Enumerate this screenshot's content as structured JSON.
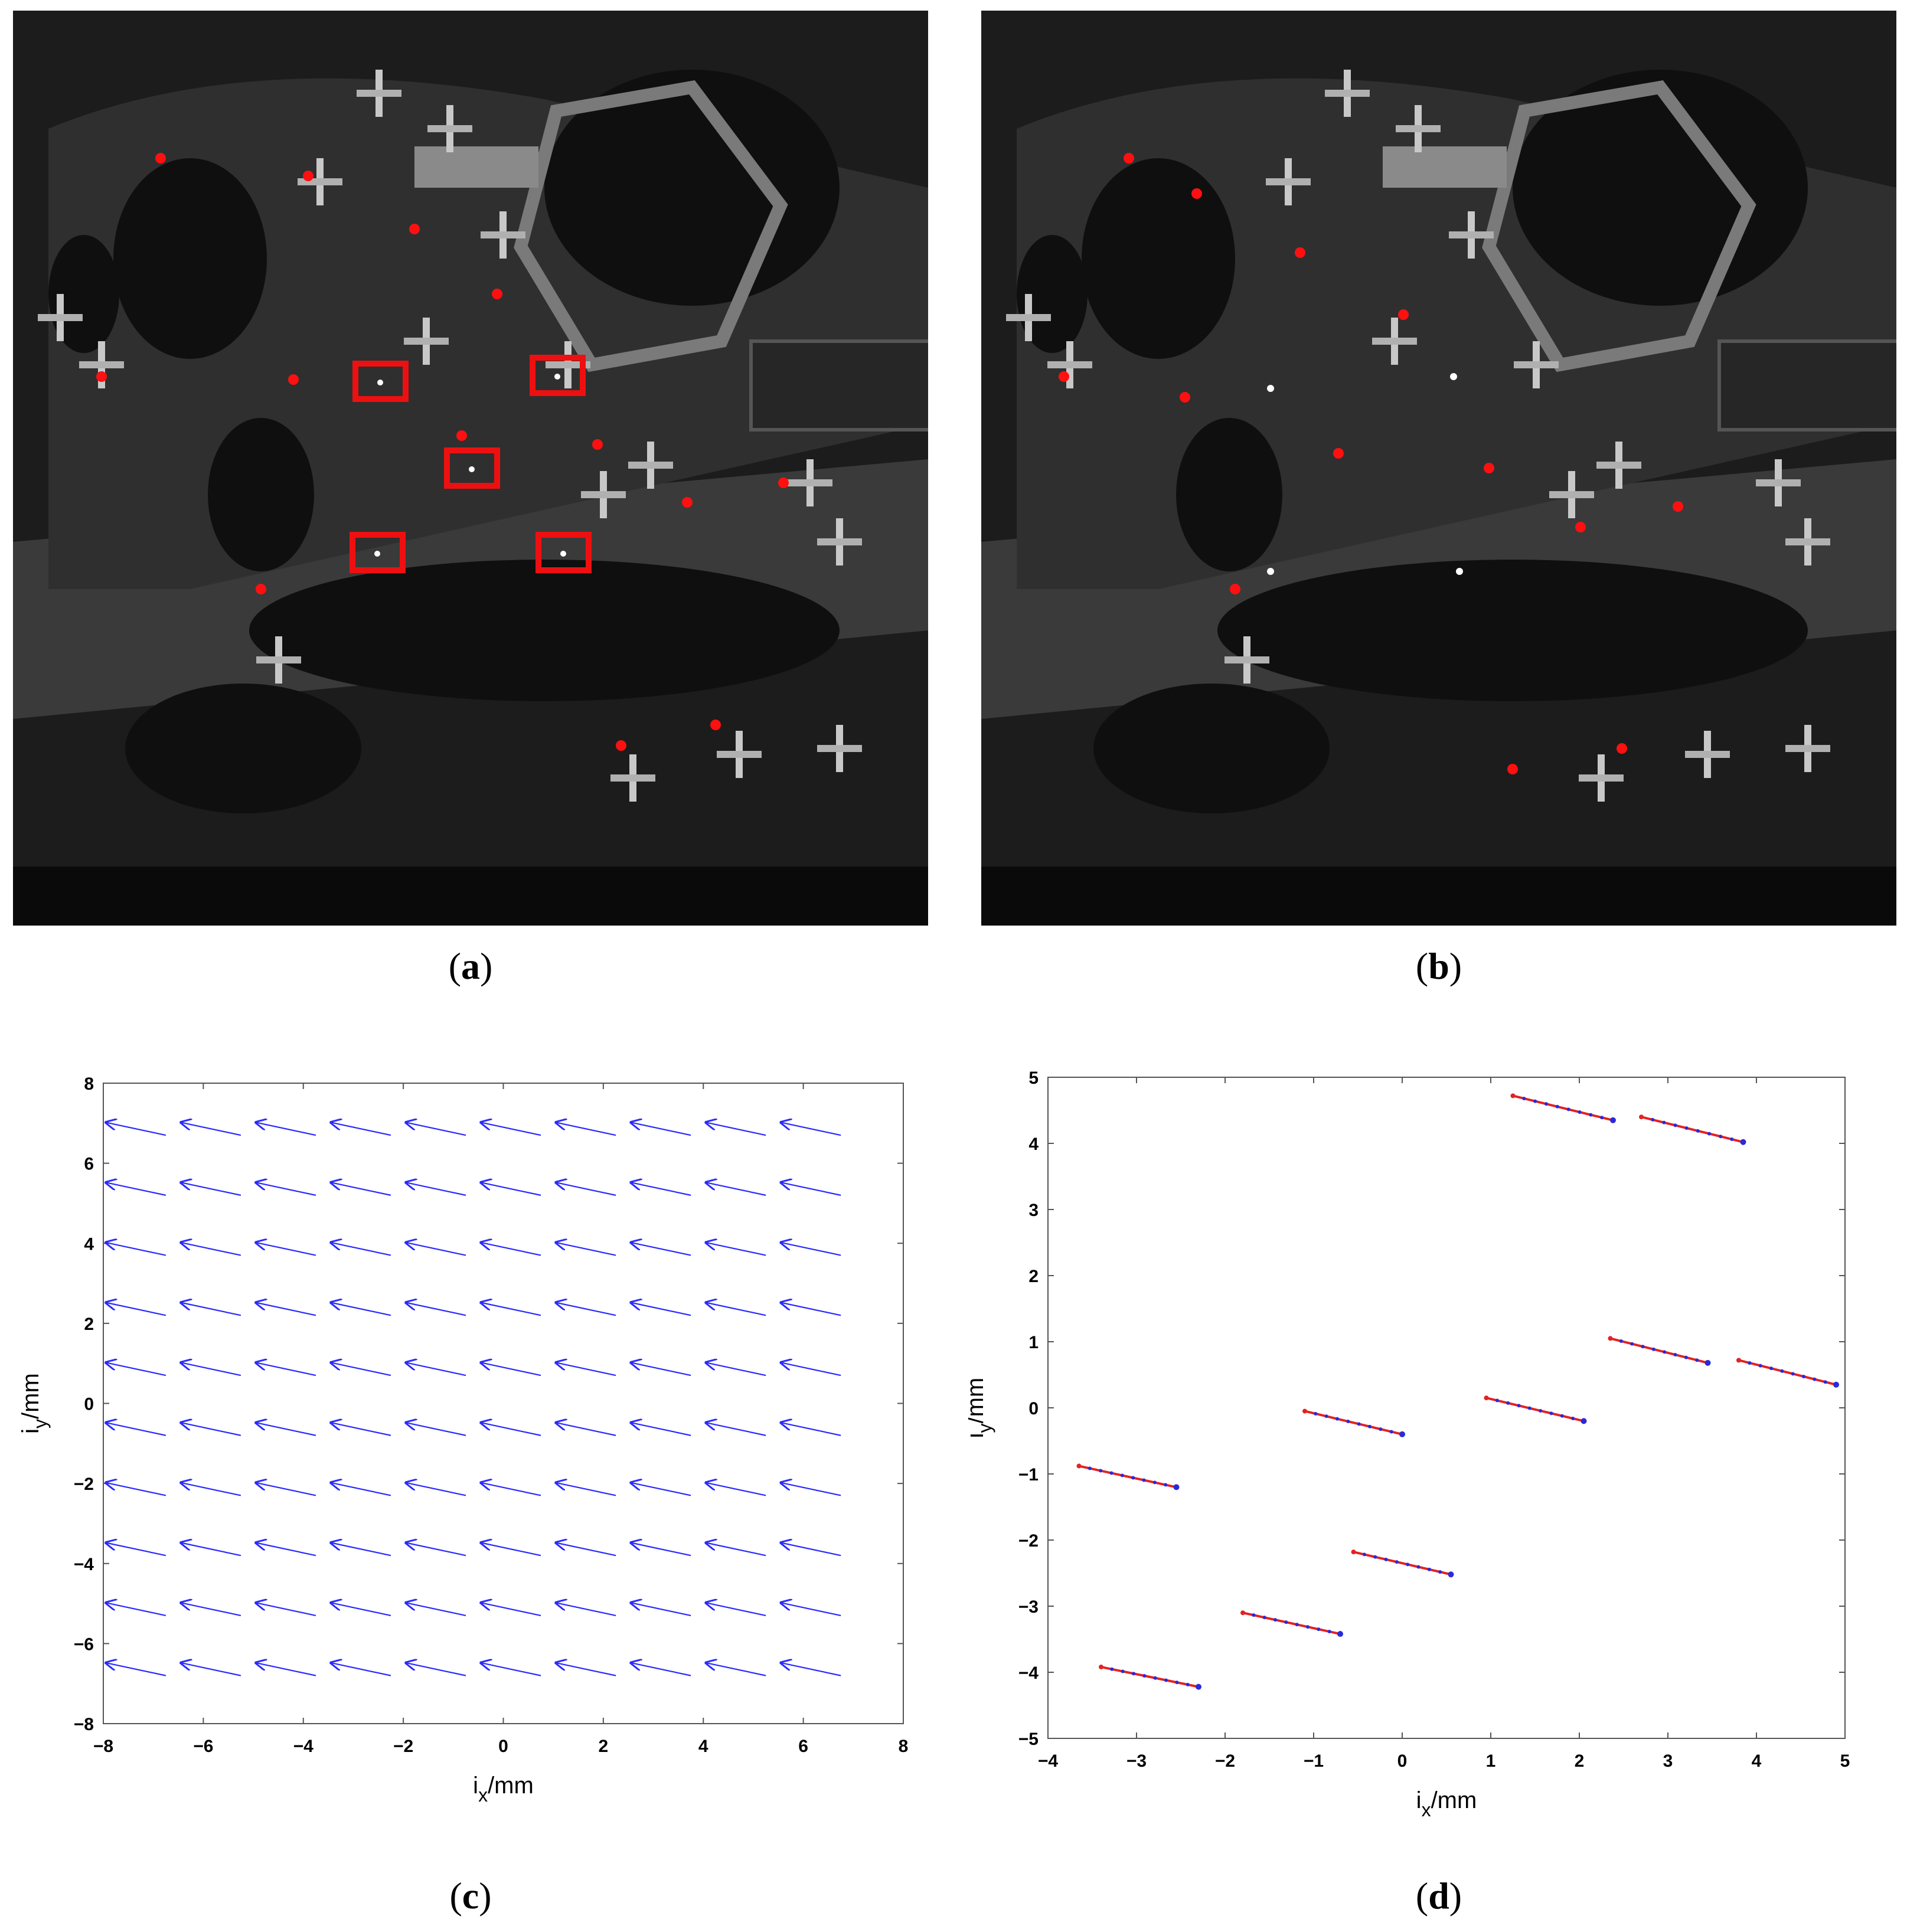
{
  "captions": {
    "a": "a",
    "b": "b",
    "c": "c",
    "d": "d"
  },
  "colors": {
    "marker": "#ff1010",
    "box": "#ee1010",
    "quiver": "#2a2aff",
    "trail_red": "#e32222",
    "trail_blue": "#2a2ad8"
  },
  "photos": {
    "a": {
      "description_icon": "airport-satellite-image",
      "red_boxes": 5,
      "red_markers": 13
    },
    "b": {
      "description_icon": "airport-satellite-image-corrected",
      "red_markers": 13
    }
  },
  "chart_data": [
    {
      "id": "c",
      "type": "quiver",
      "xlabel_main": "i",
      "xlabel_sub": "x",
      "xlabel_unit": "/mm",
      "ylabel_main": "i",
      "ylabel_sub": "y",
      "ylabel_unit": "/mm",
      "xlim": [
        -8,
        8
      ],
      "ylim": [
        -8,
        8
      ],
      "xticks": [
        -8,
        -6,
        -4,
        -2,
        0,
        2,
        4,
        6,
        8
      ],
      "yticks": [
        -8,
        -6,
        -4,
        -2,
        0,
        2,
        4,
        6,
        8
      ],
      "grid_x": [
        -6.75,
        -5.25,
        -3.75,
        -2.25,
        -0.75,
        0.75,
        2.25,
        3.75,
        5.25,
        6.75
      ],
      "grid_y": [
        6.7,
        5.2,
        3.7,
        2.2,
        0.7,
        -0.8,
        -2.3,
        -3.8,
        -5.3,
        -6.8
      ],
      "vector": {
        "dx": -1.2,
        "dy": 0.32
      },
      "grid": false
    },
    {
      "id": "d",
      "type": "trajectory",
      "xlabel_main": "i",
      "xlabel_sub": "x",
      "xlabel_unit": "/mm",
      "ylabel_main": "i",
      "ylabel_sub": "y",
      "ylabel_unit": "/mm",
      "xlim": [
        -4,
        5
      ],
      "ylim": [
        -5,
        5
      ],
      "xticks": [
        -4,
        -3,
        -2,
        -1,
        0,
        1,
        2,
        3,
        4,
        5
      ],
      "yticks": [
        -5,
        -4,
        -3,
        -2,
        -1,
        0,
        1,
        2,
        3,
        4,
        5
      ],
      "series": [
        {
          "start": [
            1.25,
            4.72
          ],
          "end": [
            2.38,
            4.35
          ]
        },
        {
          "start": [
            2.7,
            4.4
          ],
          "end": [
            3.85,
            4.02
          ]
        },
        {
          "start": [
            2.35,
            1.05
          ],
          "end": [
            3.45,
            0.68
          ]
        },
        {
          "start": [
            3.8,
            0.72
          ],
          "end": [
            4.9,
            0.35
          ]
        },
        {
          "start": [
            -1.1,
            -0.05
          ],
          "end": [
            0.0,
            -0.4
          ]
        },
        {
          "start": [
            0.95,
            0.15
          ],
          "end": [
            2.05,
            -0.2
          ]
        },
        {
          "start": [
            -3.65,
            -0.88
          ],
          "end": [
            -2.55,
            -1.2
          ]
        },
        {
          "start": [
            -0.55,
            -2.18
          ],
          "end": [
            0.55,
            -2.52
          ]
        },
        {
          "start": [
            -1.8,
            -3.1
          ],
          "end": [
            -0.7,
            -3.42
          ]
        },
        {
          "start": [
            -3.4,
            -3.92
          ],
          "end": [
            -2.3,
            -4.22
          ]
        }
      ],
      "dots_per_trail": 9,
      "grid": false
    }
  ]
}
